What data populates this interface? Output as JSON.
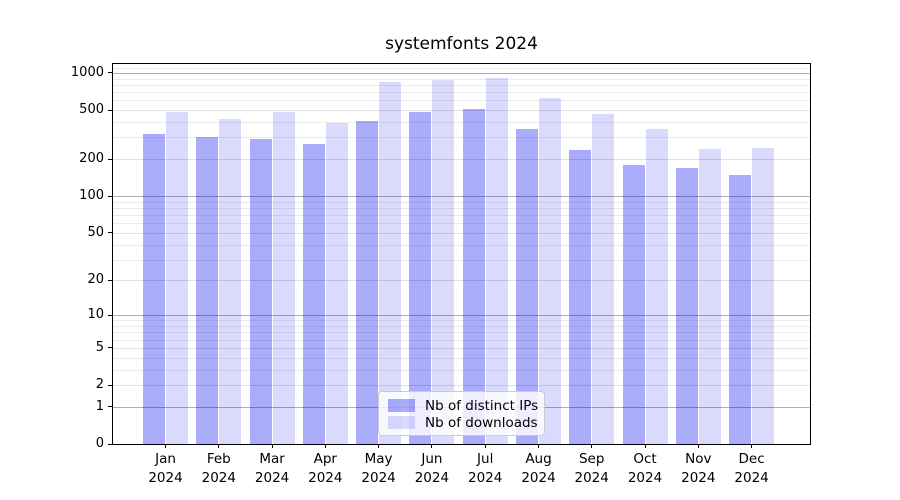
{
  "chart_data": {
    "type": "bar",
    "title": "systemfonts 2024",
    "categories": [
      "Jan",
      "Feb",
      "Mar",
      "Apr",
      "May",
      "Jun",
      "Jul",
      "Aug",
      "Sep",
      "Oct",
      "Nov",
      "Dec"
    ],
    "year_label": "2024",
    "series": [
      {
        "name": "Nb of distinct IPs",
        "color": "rgba(10,10,243,0.34)",
        "values": [
          320,
          300,
          290,
          265,
          410,
          478,
          512,
          350,
          236,
          180,
          170,
          150
        ]
      },
      {
        "name": "Nb of downloads",
        "color": "rgba(10,10,243,0.15)",
        "values": [
          480,
          420,
          480,
          390,
          850,
          880,
          910,
          625,
          467,
          353,
          240,
          245
        ]
      }
    ],
    "xlabel": "",
    "ylabel": "",
    "yscale": "log1p",
    "yticks": [
      0,
      1,
      2,
      5,
      10,
      20,
      50,
      100,
      200,
      500,
      1000
    ],
    "ylim": [
      0,
      1180
    ],
    "grid": "on",
    "legend_position": "lower center",
    "colors": {
      "grid_minor": "#ebebeb",
      "grid_medium": "#e0e0e0",
      "grid_major": "#aeaeae",
      "axis": "#000000",
      "background": "#ffffff"
    }
  }
}
